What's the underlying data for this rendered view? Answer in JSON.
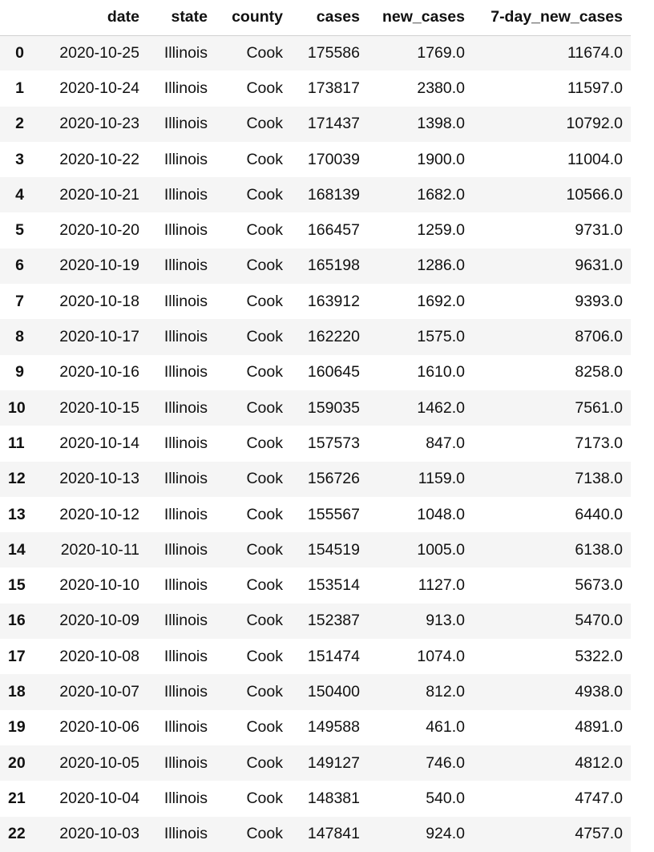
{
  "table": {
    "index_header": "",
    "columns": [
      "date",
      "state",
      "county",
      "cases",
      "new_cases",
      "7-day_new_cases"
    ],
    "rows": [
      {
        "index": "0",
        "cells": [
          "2020-10-25",
          "Illinois",
          "Cook",
          "175586",
          "1769.0",
          "11674.0"
        ]
      },
      {
        "index": "1",
        "cells": [
          "2020-10-24",
          "Illinois",
          "Cook",
          "173817",
          "2380.0",
          "11597.0"
        ]
      },
      {
        "index": "2",
        "cells": [
          "2020-10-23",
          "Illinois",
          "Cook",
          "171437",
          "1398.0",
          "10792.0"
        ]
      },
      {
        "index": "3",
        "cells": [
          "2020-10-22",
          "Illinois",
          "Cook",
          "170039",
          "1900.0",
          "11004.0"
        ]
      },
      {
        "index": "4",
        "cells": [
          "2020-10-21",
          "Illinois",
          "Cook",
          "168139",
          "1682.0",
          "10566.0"
        ]
      },
      {
        "index": "5",
        "cells": [
          "2020-10-20",
          "Illinois",
          "Cook",
          "166457",
          "1259.0",
          "9731.0"
        ]
      },
      {
        "index": "6",
        "cells": [
          "2020-10-19",
          "Illinois",
          "Cook",
          "165198",
          "1286.0",
          "9631.0"
        ]
      },
      {
        "index": "7",
        "cells": [
          "2020-10-18",
          "Illinois",
          "Cook",
          "163912",
          "1692.0",
          "9393.0"
        ]
      },
      {
        "index": "8",
        "cells": [
          "2020-10-17",
          "Illinois",
          "Cook",
          "162220",
          "1575.0",
          "8706.0"
        ]
      },
      {
        "index": "9",
        "cells": [
          "2020-10-16",
          "Illinois",
          "Cook",
          "160645",
          "1610.0",
          "8258.0"
        ]
      },
      {
        "index": "10",
        "cells": [
          "2020-10-15",
          "Illinois",
          "Cook",
          "159035",
          "1462.0",
          "7561.0"
        ]
      },
      {
        "index": "11",
        "cells": [
          "2020-10-14",
          "Illinois",
          "Cook",
          "157573",
          "847.0",
          "7173.0"
        ]
      },
      {
        "index": "12",
        "cells": [
          "2020-10-13",
          "Illinois",
          "Cook",
          "156726",
          "1159.0",
          "7138.0"
        ]
      },
      {
        "index": "13",
        "cells": [
          "2020-10-12",
          "Illinois",
          "Cook",
          "155567",
          "1048.0",
          "6440.0"
        ]
      },
      {
        "index": "14",
        "cells": [
          "2020-10-11",
          "Illinois",
          "Cook",
          "154519",
          "1005.0",
          "6138.0"
        ]
      },
      {
        "index": "15",
        "cells": [
          "2020-10-10",
          "Illinois",
          "Cook",
          "153514",
          "1127.0",
          "5673.0"
        ]
      },
      {
        "index": "16",
        "cells": [
          "2020-10-09",
          "Illinois",
          "Cook",
          "152387",
          "913.0",
          "5470.0"
        ]
      },
      {
        "index": "17",
        "cells": [
          "2020-10-08",
          "Illinois",
          "Cook",
          "151474",
          "1074.0",
          "5322.0"
        ]
      },
      {
        "index": "18",
        "cells": [
          "2020-10-07",
          "Illinois",
          "Cook",
          "150400",
          "812.0",
          "4938.0"
        ]
      },
      {
        "index": "19",
        "cells": [
          "2020-10-06",
          "Illinois",
          "Cook",
          "149588",
          "461.0",
          "4891.0"
        ]
      },
      {
        "index": "20",
        "cells": [
          "2020-10-05",
          "Illinois",
          "Cook",
          "149127",
          "746.0",
          "4812.0"
        ]
      },
      {
        "index": "21",
        "cells": [
          "2020-10-04",
          "Illinois",
          "Cook",
          "148381",
          "540.0",
          "4747.0"
        ]
      },
      {
        "index": "22",
        "cells": [
          "2020-10-03",
          "Illinois",
          "Cook",
          "147841",
          "924.0",
          "4757.0"
        ]
      }
    ]
  }
}
